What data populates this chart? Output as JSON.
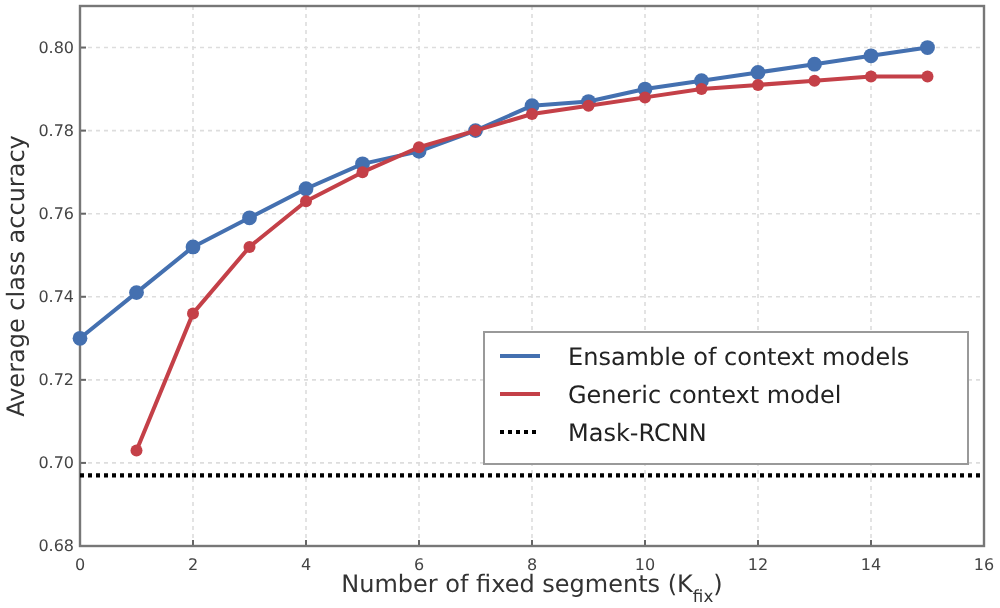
{
  "chart_data": {
    "type": "line",
    "xlabel": "Number of fixed segments (K$_{fix}$)",
    "ylabel": "Average class accuracy",
    "xlim": [
      0,
      16
    ],
    "xticks": [
      0,
      2,
      4,
      6,
      8,
      10,
      12,
      14,
      16
    ],
    "ylim": [
      0.68,
      0.81
    ],
    "yticks": [
      0.68,
      {
        "value": 0.7,
        "label": "0.70"
      },
      0.72,
      0.74,
      0.76,
      0.78,
      {
        "value": 0.8,
        "label": "0.80"
      }
    ],
    "grid": true,
    "legend": "bottom right",
    "marker": "circle",
    "series": [
      {
        "name": "Ensamble of context models",
        "color": "#4470b0",
        "x": [
          0,
          1,
          2,
          3,
          4,
          5,
          6,
          7,
          8,
          9,
          10,
          11,
          12,
          13,
          14,
          15
        ],
        "values": [
          0.73,
          0.741,
          0.752,
          0.759,
          0.766,
          0.772,
          0.775,
          0.78,
          0.786,
          0.787,
          0.79,
          0.792,
          0.794,
          0.796,
          0.798,
          0.8
        ]
      },
      {
        "name": "Generic context model",
        "color": "#c44048",
        "x": [
          1,
          2,
          3,
          4,
          5,
          6,
          7,
          8,
          9,
          10,
          11,
          12,
          13,
          14,
          15
        ],
        "values": [
          0.703,
          0.736,
          0.752,
          0.763,
          0.77,
          0.776,
          0.78,
          0.784,
          0.786,
          0.788,
          0.79,
          0.791,
          0.792,
          0.793,
          0.793
        ]
      },
      {
        "name": "Mask-RCNN",
        "color": "#000000",
        "x": [
          0,
          16
        ],
        "values": [
          0.697,
          0.697
        ],
        "marker": "none",
        "line_style": "dotted"
      }
    ]
  }
}
